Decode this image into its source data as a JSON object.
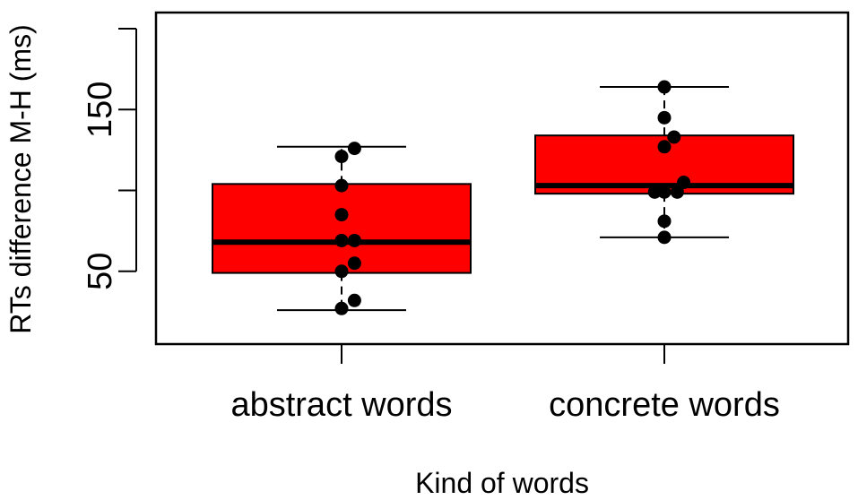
{
  "chart_data": {
    "type": "box",
    "xlabel": "Kind of words",
    "ylabel": "RTs difference M-H (ms)",
    "ylim": [
      5,
      210
    ],
    "yticks": [
      50,
      150
    ],
    "categories": [
      "abstract words",
      "concrete words"
    ],
    "box_color": "#ff0000",
    "point_color": "#000000",
    "boxes": [
      {
        "name": "abstract words",
        "whisker_low": 26,
        "q1": 49,
        "median": 68,
        "q3": 104,
        "whisker_high": 127,
        "points": [
          {
            "dx": 0.0,
            "y": 121
          },
          {
            "dx": 0.08,
            "y": 126
          },
          {
            "dx": 0.0,
            "y": 103
          },
          {
            "dx": 0.0,
            "y": 85
          },
          {
            "dx": 0.0,
            "y": 69
          },
          {
            "dx": 0.08,
            "y": 69
          },
          {
            "dx": 0.08,
            "y": 55
          },
          {
            "dx": 0.0,
            "y": 50
          },
          {
            "dx": 0.08,
            "y": 32
          },
          {
            "dx": 0.0,
            "y": 27
          }
        ]
      },
      {
        "name": "concrete words",
        "whisker_low": 71,
        "q1": 98,
        "median": 103,
        "q3": 134,
        "whisker_high": 164,
        "points": [
          {
            "dx": 0.0,
            "y": 164
          },
          {
            "dx": 0.0,
            "y": 145
          },
          {
            "dx": 0.06,
            "y": 133
          },
          {
            "dx": 0.0,
            "y": 127
          },
          {
            "dx": 0.12,
            "y": 105
          },
          {
            "dx": -0.06,
            "y": 99
          },
          {
            "dx": 0.0,
            "y": 99
          },
          {
            "dx": 0.08,
            "y": 99
          },
          {
            "dx": 0.0,
            "y": 81
          },
          {
            "dx": 0.0,
            "y": 71
          }
        ]
      }
    ]
  }
}
